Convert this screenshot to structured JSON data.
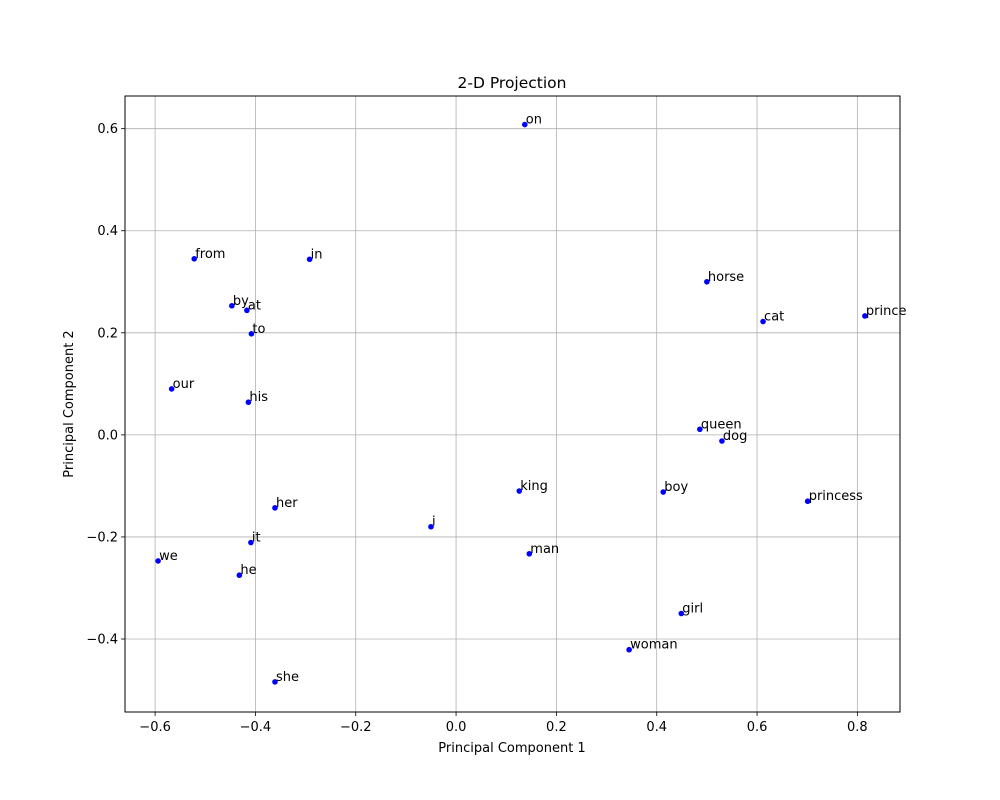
{
  "chart_data": {
    "type": "scatter",
    "title": "2-D Projection",
    "xlabel": "Principal Component 1",
    "ylabel": "Principal Component 2",
    "xlim": [
      -0.66,
      0.885
    ],
    "ylim": [
      -0.543,
      0.664
    ],
    "xticks": [
      -0.6,
      -0.4,
      -0.2,
      0.0,
      0.2,
      0.4,
      0.6,
      0.8
    ],
    "yticks": [
      -0.4,
      -0.2,
      0.0,
      0.2,
      0.4,
      0.6
    ],
    "xtick_labels": [
      "−0.6",
      "−0.4",
      "−0.2",
      "0.0",
      "0.2",
      "0.4",
      "0.6",
      "0.8"
    ],
    "ytick_labels": [
      "−0.4",
      "−0.2",
      "0.0",
      "0.2",
      "0.4",
      "0.6"
    ],
    "grid": true,
    "point_color": "#0000ff",
    "points": [
      {
        "label": "on",
        "x": 0.137,
        "y": 0.608
      },
      {
        "label": "from",
        "x": -0.522,
        "y": 0.345
      },
      {
        "label": "in",
        "x": -0.292,
        "y": 0.344
      },
      {
        "label": "horse",
        "x": 0.5,
        "y": 0.3
      },
      {
        "label": "by",
        "x": -0.447,
        "y": 0.253
      },
      {
        "label": "at",
        "x": -0.417,
        "y": 0.244
      },
      {
        "label": "cat",
        "x": 0.612,
        "y": 0.222
      },
      {
        "label": "prince",
        "x": 0.815,
        "y": 0.233
      },
      {
        "label": "to",
        "x": -0.408,
        "y": 0.198
      },
      {
        "label": "our",
        "x": -0.567,
        "y": 0.09
      },
      {
        "label": "his",
        "x": -0.414,
        "y": 0.064
      },
      {
        "label": "queen",
        "x": 0.486,
        "y": 0.011
      },
      {
        "label": "dog",
        "x": 0.53,
        "y": -0.012
      },
      {
        "label": "king",
        "x": 0.126,
        "y": -0.11
      },
      {
        "label": "boy",
        "x": 0.413,
        "y": -0.112
      },
      {
        "label": "princess",
        "x": 0.701,
        "y": -0.13
      },
      {
        "label": "her",
        "x": -0.361,
        "y": -0.143
      },
      {
        "label": "i",
        "x": -0.05,
        "y": -0.18
      },
      {
        "label": "it",
        "x": -0.409,
        "y": -0.211
      },
      {
        "label": "man",
        "x": 0.146,
        "y": -0.233
      },
      {
        "label": "we",
        "x": -0.594,
        "y": -0.247
      },
      {
        "label": "he",
        "x": -0.432,
        "y": -0.275
      },
      {
        "label": "girl",
        "x": 0.449,
        "y": -0.35
      },
      {
        "label": "woman",
        "x": 0.345,
        "y": -0.421
      },
      {
        "label": "she",
        "x": -0.361,
        "y": -0.484
      }
    ]
  }
}
